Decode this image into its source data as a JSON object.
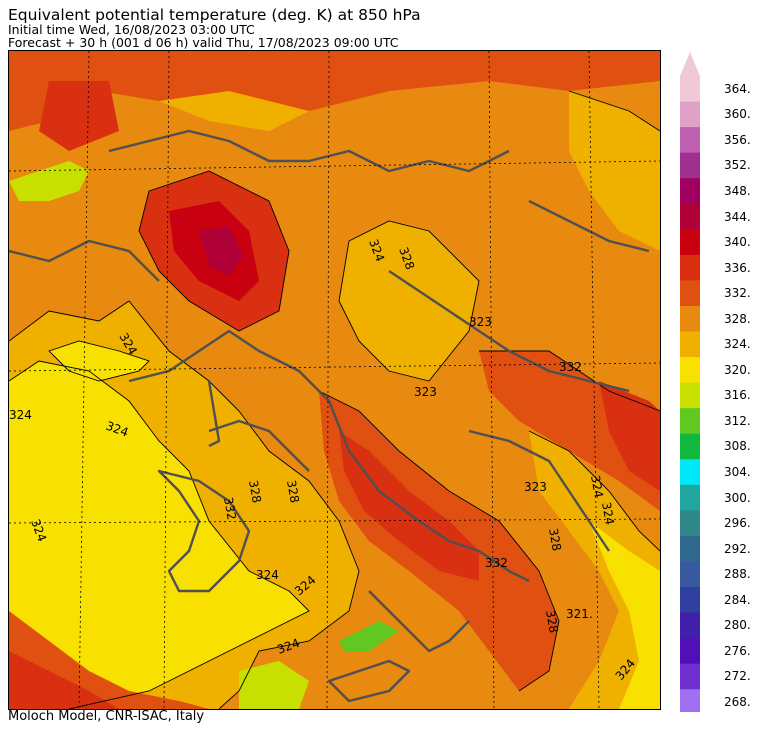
{
  "header": {
    "title": "Equivalent potential temperature (deg. K) at 850 hPa",
    "initial_time": "Initial time  Wed, 16/08/2023  03:00 UTC",
    "forecast": "Forecast  +  30 h  (001 d 06 h)  valid Thu, 17/08/2023 09:00 UTC"
  },
  "footer": {
    "credit": "Moloch Model, CNR-ISAC, Italy"
  },
  "map": {
    "contour_labels": [
      "324",
      "324",
      "324",
      "324",
      "324",
      "324",
      "324",
      "324",
      "328",
      "328",
      "328",
      "323",
      "323",
      "323",
      "321.",
      "324",
      "324",
      "332",
      "332",
      "332",
      "324",
      "328",
      "328"
    ]
  },
  "colorbar": {
    "levels": [
      {
        "label": "364.",
        "color": "#f0c8d8"
      },
      {
        "label": "360.",
        "color": "#e0a0c8"
      },
      {
        "label": "356.",
        "color": "#c060b0"
      },
      {
        "label": "352.",
        "color": "#a03090"
      },
      {
        "label": "348.",
        "color": "#a00060"
      },
      {
        "label": "344.",
        "color": "#b00038"
      },
      {
        "label": "340.",
        "color": "#c80010"
      },
      {
        "label": "336.",
        "color": "#d83010"
      },
      {
        "label": "332.",
        "color": "#e05010"
      },
      {
        "label": "328.",
        "color": "#e88a10"
      },
      {
        "label": "324.",
        "color": "#f0b000"
      },
      {
        "label": "320.",
        "color": "#f8e000"
      },
      {
        "label": "316.",
        "color": "#c8e000"
      },
      {
        "label": "312.",
        "color": "#60c820"
      },
      {
        "label": "308.",
        "color": "#10b840"
      },
      {
        "label": "304.",
        "color": "#00e8f8"
      },
      {
        "label": "300.",
        "color": "#20a8a0"
      },
      {
        "label": "296.",
        "color": "#308888"
      },
      {
        "label": "292.",
        "color": "#306890"
      },
      {
        "label": "288.",
        "color": "#3858a0"
      },
      {
        "label": "284.",
        "color": "#3040a0"
      },
      {
        "label": "280.",
        "color": "#4020a8"
      },
      {
        "label": "276.",
        "color": "#5010b8"
      },
      {
        "label": "272.",
        "color": "#7030d0"
      },
      {
        "label": "268.",
        "color": "#a070f0"
      }
    ]
  }
}
